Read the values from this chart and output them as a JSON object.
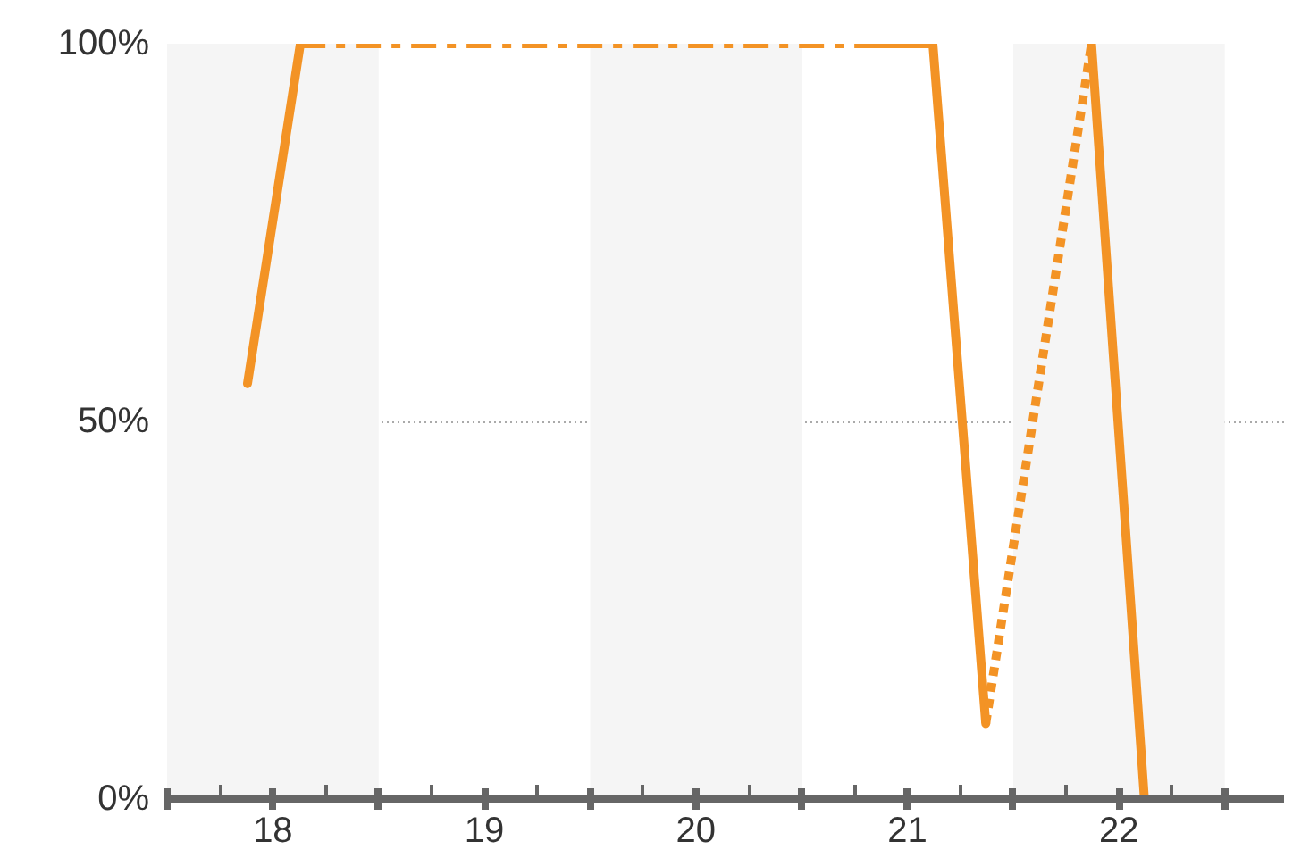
{
  "chart_data": {
    "type": "line",
    "xlim": [
      17.5,
      22.78
    ],
    "xticks": [
      {
        "value": 17.5,
        "label": null
      },
      18,
      {
        "value": 18.5,
        "label": null
      },
      19,
      {
        "value": 19.5,
        "label": null
      },
      20,
      {
        "value": 20.5,
        "label": null
      },
      21,
      {
        "value": 21.5,
        "label": null
      },
      22,
      {
        "value": 22.5,
        "label": null
      }
    ],
    "ylim": [
      0,
      100
    ],
    "yticks": [
      {
        "value": 0,
        "label": "0%"
      },
      {
        "value": 50,
        "label": "50%"
      },
      {
        "value": 100,
        "label": "100%"
      }
    ],
    "grid": "y",
    "series": [
      {
        "color": "#f39325",
        "line_style": "solid",
        "x": [
          17.88,
          18.13
        ],
        "values": [
          55,
          100
        ]
      },
      {
        "color": "#f39325",
        "line_style": "dashed",
        "x": [
          18.13,
          20.86
        ],
        "values": [
          100,
          100
        ]
      },
      {
        "color": "#f39325",
        "line_style": "solid",
        "x": [
          20.86,
          21.12,
          21.37
        ],
        "values": [
          100,
          100,
          10
        ]
      },
      {
        "color": "#f39325",
        "line_style": "dotted",
        "x": [
          21.37,
          21.87
        ],
        "values": [
          10,
          100
        ]
      },
      {
        "color": "#f39325",
        "line_style": "solid",
        "x": [
          21.87,
          22.12
        ],
        "values": [
          100,
          0
        ]
      }
    ],
    "bands": [
      {
        "axis": "x",
        "from": 17.5,
        "to": 18.5,
        "color": "#f5f5f5"
      },
      {
        "axis": "x",
        "from": 19.5,
        "to": 20.5,
        "color": "#f5f5f5"
      },
      {
        "axis": "x",
        "from": 21.5,
        "to": 22.5,
        "color": "#f5f5f5"
      }
    ]
  }
}
